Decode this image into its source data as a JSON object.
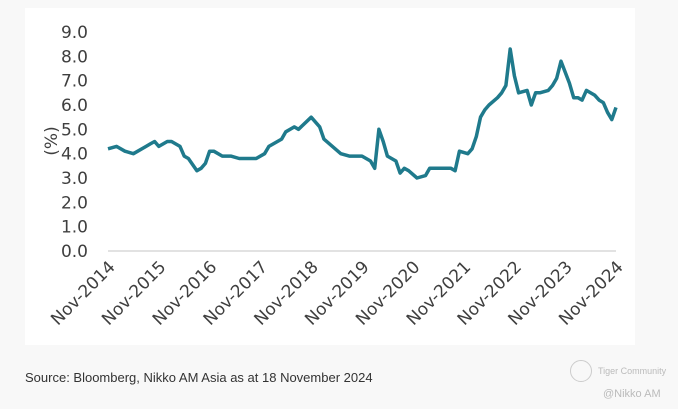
{
  "chart_data": {
    "type": "line",
    "title": "",
    "xlabel": "",
    "ylabel": "(%)",
    "ylim": [
      0,
      9
    ],
    "yticks": [
      "0.0",
      "1.0",
      "2.0",
      "3.0",
      "4.0",
      "5.0",
      "6.0",
      "7.0",
      "8.0",
      "9.0"
    ],
    "xticks": [
      "Nov-2014",
      "Nov-2015",
      "Nov-2016",
      "Nov-2017",
      "Nov-2018",
      "Nov-2019",
      "Nov-2020",
      "Nov-2021",
      "Nov-2022",
      "Nov-2023",
      "Nov-2024"
    ],
    "xlim": [
      "2014-11",
      "2024-11"
    ],
    "grid": false,
    "line_color": "#1f7a8c",
    "series": [
      {
        "x": [
          "2014-11",
          "2015-01",
          "2015-03",
          "2015-05",
          "2015-08",
          "2015-09",
          "2015-10",
          "2015-11",
          "2016-01",
          "2016-02",
          "2016-04",
          "2016-05",
          "2016-06",
          "2016-08",
          "2016-09",
          "2016-10",
          "2016-11",
          "2016-12",
          "2017-02",
          "2017-04",
          "2017-06",
          "2017-08",
          "2017-10",
          "2017-12",
          "2018-01",
          "2018-04",
          "2018-05",
          "2018-07",
          "2018-08",
          "2018-11",
          "2019-01",
          "2019-02",
          "2019-04",
          "2019-06",
          "2019-08",
          "2019-11",
          "2020-01",
          "2020-02",
          "2020-03",
          "2020-04",
          "2020-05",
          "2020-07",
          "2020-08",
          "2020-09",
          "2020-10",
          "2020-12",
          "2021-02",
          "2021-03",
          "2021-06",
          "2021-08",
          "2021-09",
          "2021-10",
          "2021-12",
          "2022-01",
          "2022-02",
          "2022-03",
          "2022-04",
          "2022-05",
          "2022-07",
          "2022-08",
          "2022-09",
          "2022-10",
          "2022-11",
          "2022-12",
          "2023-02",
          "2023-03",
          "2023-04",
          "2023-05",
          "2023-07",
          "2023-08",
          "2023-09",
          "2023-10",
          "2023-12",
          "2024-01",
          "2024-02",
          "2024-03",
          "2024-04",
          "2024-06",
          "2024-07",
          "2024-08",
          "2024-09",
          "2024-10",
          "2024-11"
        ],
        "y": [
          4.2,
          4.3,
          4.1,
          4.0,
          4.3,
          4.4,
          4.5,
          4.3,
          4.5,
          4.5,
          4.3,
          3.9,
          3.8,
          3.3,
          3.4,
          3.6,
          4.1,
          4.1,
          3.9,
          3.9,
          3.8,
          3.8,
          3.8,
          4.0,
          4.3,
          4.6,
          4.9,
          5.1,
          5.0,
          5.5,
          5.1,
          4.6,
          4.3,
          4.0,
          3.9,
          3.9,
          3.7,
          3.4,
          5.0,
          4.5,
          3.9,
          3.7,
          3.2,
          3.4,
          3.3,
          3.0,
          3.1,
          3.4,
          3.4,
          3.4,
          3.3,
          4.1,
          4.0,
          4.2,
          4.7,
          5.5,
          5.8,
          6.0,
          6.3,
          6.5,
          6.8,
          8.3,
          7.2,
          6.5,
          6.6,
          6.0,
          6.5,
          6.5,
          6.6,
          6.8,
          7.1,
          7.8,
          6.9,
          6.3,
          6.3,
          6.2,
          6.6,
          6.4,
          6.2,
          6.1,
          5.7,
          5.4,
          5.9
        ]
      }
    ]
  },
  "footer": {
    "source": "Source: Bloomberg, Nikko AM Asia as at 18 November 2024",
    "watermark_line1": "Tiger Community",
    "watermark_line2": "@Nikko AM"
  }
}
